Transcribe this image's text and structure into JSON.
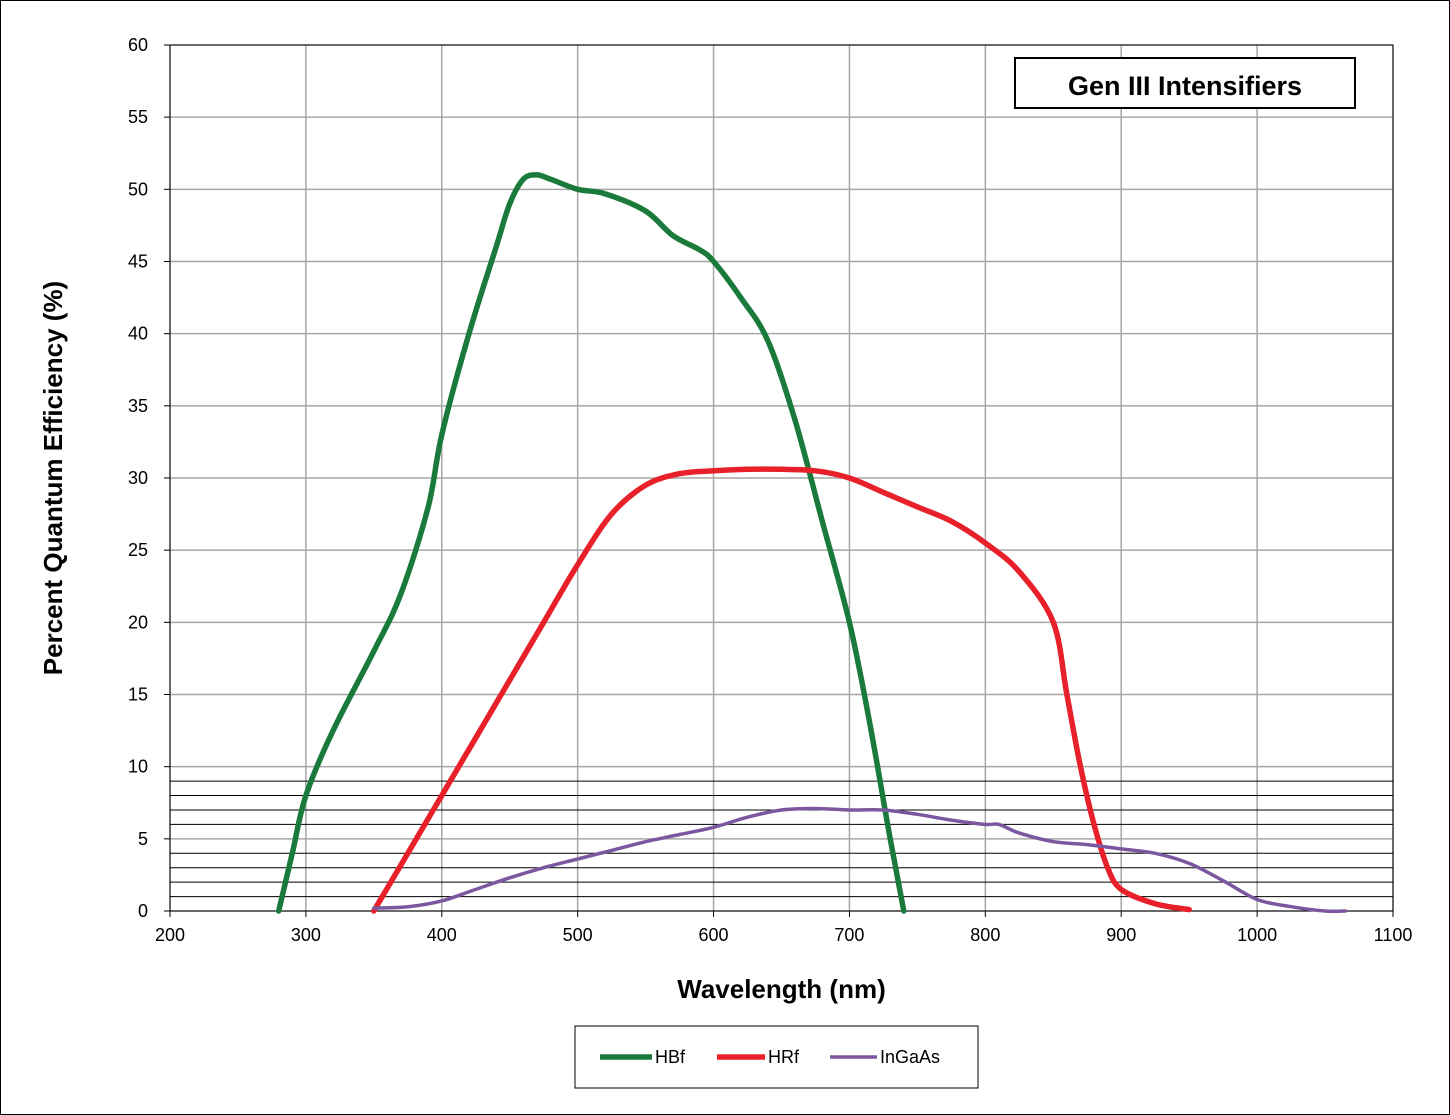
{
  "chart_data": {
    "type": "line",
    "title": "",
    "annotation": "Gen III Intensifiers",
    "xlabel": "Wavelength (nm)",
    "ylabel": "Percent Quantum Efficiency (%)",
    "xlim": [
      200,
      1100
    ],
    "ylim": [
      0,
      60
    ],
    "xticks": [
      200,
      300,
      400,
      500,
      600,
      700,
      800,
      900,
      1000,
      1100
    ],
    "yticks": [
      0,
      5,
      10,
      15,
      20,
      25,
      30,
      35,
      40,
      45,
      50,
      55,
      60
    ],
    "minor_y_lines": [
      1,
      2,
      3,
      4,
      6,
      7,
      8,
      9
    ],
    "grid": true,
    "legend": "bottom-center",
    "series": [
      {
        "name": "HBf",
        "color": "#1a7a3c",
        "points": [
          [
            280,
            0
          ],
          [
            290,
            4
          ],
          [
            300,
            8
          ],
          [
            320,
            12.5
          ],
          [
            350,
            18
          ],
          [
            370,
            22
          ],
          [
            390,
            28
          ],
          [
            400,
            33
          ],
          [
            420,
            40
          ],
          [
            440,
            46
          ],
          [
            450,
            49
          ],
          [
            460,
            50.7
          ],
          [
            470,
            51
          ],
          [
            480,
            50.7
          ],
          [
            500,
            50
          ],
          [
            520,
            49.7
          ],
          [
            550,
            48.5
          ],
          [
            570,
            46.8
          ],
          [
            590,
            45.8
          ],
          [
            600,
            45
          ],
          [
            620,
            42.5
          ],
          [
            640,
            39.5
          ],
          [
            660,
            34
          ],
          [
            680,
            27
          ],
          [
            700,
            20
          ],
          [
            715,
            13
          ],
          [
            730,
            5
          ],
          [
            740,
            0
          ]
        ]
      },
      {
        "name": "HRf",
        "color": "#e8202a",
        "points": [
          [
            350,
            0
          ],
          [
            375,
            4
          ],
          [
            400,
            8
          ],
          [
            425,
            12
          ],
          [
            450,
            16
          ],
          [
            475,
            20
          ],
          [
            500,
            24
          ],
          [
            525,
            27.5
          ],
          [
            550,
            29.5
          ],
          [
            575,
            30.3
          ],
          [
            600,
            30.5
          ],
          [
            625,
            30.6
          ],
          [
            650,
            30.6
          ],
          [
            675,
            30.5
          ],
          [
            700,
            30
          ],
          [
            725,
            29
          ],
          [
            750,
            28
          ],
          [
            775,
            27
          ],
          [
            800,
            25.5
          ],
          [
            825,
            23.5
          ],
          [
            850,
            20
          ],
          [
            860,
            15
          ],
          [
            870,
            10
          ],
          [
            880,
            6
          ],
          [
            890,
            3
          ],
          [
            900,
            1.5
          ],
          [
            925,
            0.5
          ],
          [
            950,
            0.1
          ]
        ]
      },
      {
        "name": "InGaAs",
        "color": "#7b57a0",
        "points": [
          [
            350,
            0.2
          ],
          [
            375,
            0.3
          ],
          [
            400,
            0.7
          ],
          [
            425,
            1.5
          ],
          [
            450,
            2.3
          ],
          [
            475,
            3
          ],
          [
            500,
            3.6
          ],
          [
            525,
            4.2
          ],
          [
            550,
            4.8
          ],
          [
            575,
            5.3
          ],
          [
            600,
            5.8
          ],
          [
            625,
            6.5
          ],
          [
            650,
            7
          ],
          [
            675,
            7.1
          ],
          [
            700,
            7
          ],
          [
            725,
            7
          ],
          [
            750,
            6.7
          ],
          [
            775,
            6.3
          ],
          [
            800,
            6
          ],
          [
            810,
            6
          ],
          [
            825,
            5.4
          ],
          [
            850,
            4.8
          ],
          [
            875,
            4.6
          ],
          [
            900,
            4.3
          ],
          [
            925,
            4
          ],
          [
            950,
            3.3
          ],
          [
            975,
            2.1
          ],
          [
            1000,
            0.8
          ],
          [
            1025,
            0.3
          ],
          [
            1050,
            0
          ],
          [
            1065,
            0
          ]
        ]
      }
    ]
  }
}
